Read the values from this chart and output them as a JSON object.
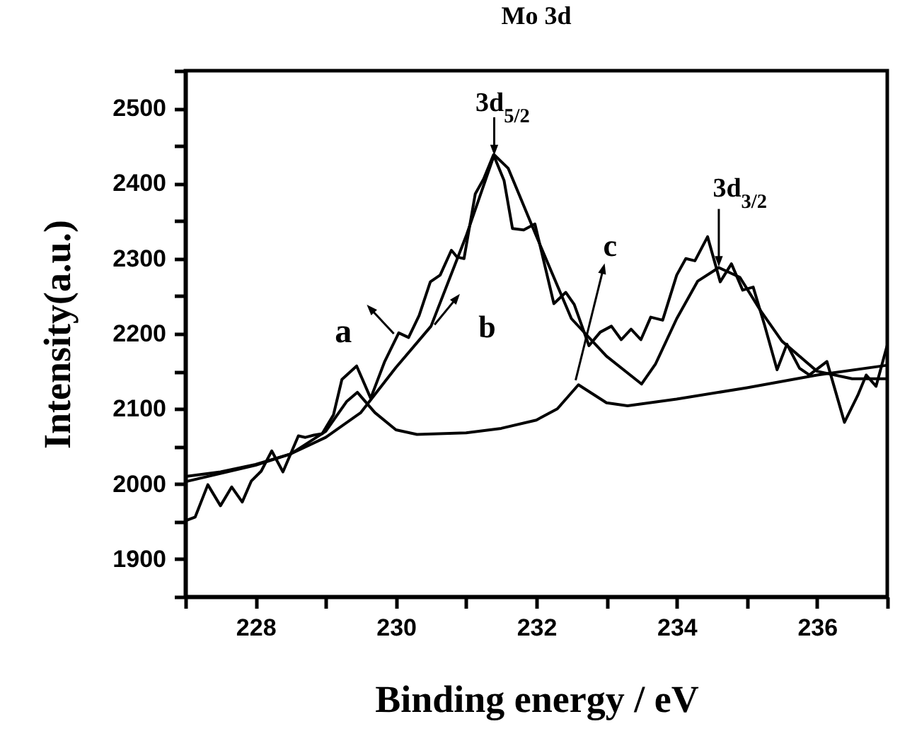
{
  "chart_data": {
    "type": "line",
    "title": "Mo 3d",
    "xlabel": "Binding energy / eV",
    "ylabel": "Intensity(a.u.)",
    "xlim": [
      227,
      237
    ],
    "ylim": [
      1850,
      2550
    ],
    "xticks": [
      {
        "value": 227,
        "label": null
      },
      228,
      {
        "value": 229,
        "label": null
      },
      230,
      {
        "value": 231,
        "label": null
      },
      232,
      {
        "value": 233,
        "label": null
      },
      234,
      {
        "value": 235,
        "label": null
      },
      236,
      {
        "value": 237,
        "label": null
      }
    ],
    "yticks": [
      {
        "value": 1850,
        "label": null
      },
      1900,
      {
        "value": 1950,
        "label": null
      },
      2000,
      {
        "value": 2050,
        "label": null
      },
      2100,
      {
        "value": 2150,
        "label": null
      },
      2200,
      {
        "value": 2250,
        "label": null
      },
      2300,
      {
        "value": 2350,
        "label": null
      },
      2400,
      {
        "value": 2450,
        "label": null
      },
      2500,
      {
        "value": 2550,
        "label": null
      }
    ],
    "grid": false,
    "marker": "none",
    "line_style": "solid",
    "series": [
      {
        "color": "#000000",
        "x": [
          227.0,
          227.14,
          227.32,
          227.5,
          227.66,
          227.81,
          227.94,
          228.08,
          228.23,
          228.39,
          228.61,
          228.71,
          228.83,
          228.95,
          229.11,
          229.23,
          229.44,
          229.64,
          229.84,
          230.04,
          230.18,
          230.33,
          230.49,
          230.63,
          230.79,
          230.87,
          230.97,
          231.13,
          231.25,
          231.39,
          231.54,
          231.66,
          231.82,
          231.98,
          232.1,
          232.25,
          232.42,
          232.54,
          232.75,
          232.91,
          233.07,
          233.21,
          233.35,
          233.49,
          233.63,
          233.8,
          234.0,
          234.13,
          234.26,
          234.44,
          234.62,
          234.78,
          234.94,
          235.09,
          235.25,
          235.43,
          235.57,
          235.75,
          235.89,
          236.14,
          236.39,
          236.58,
          236.7,
          236.84,
          237.0
        ],
        "values": [
          1951,
          1956,
          1999,
          1971,
          1996,
          1976,
          2004,
          2017,
          2044,
          2016,
          2064,
          2062,
          2065,
          2067,
          2092,
          2139,
          2157,
          2114,
          2163,
          2201,
          2195,
          2224,
          2269,
          2278,
          2311,
          2302,
          2300,
          2386,
          2406,
          2438,
          2404,
          2340,
          2338,
          2346,
          2299,
          2240,
          2255,
          2239,
          2184,
          2202,
          2210,
          2192,
          2206,
          2192,
          2222,
          2218,
          2278,
          2300,
          2297,
          2329,
          2269,
          2293,
          2258,
          2262,
          2212,
          2152,
          2186,
          2154,
          2145,
          2163,
          2082,
          2118,
          2145,
          2130,
          2185
        ]
      },
      {
        "color": "#000000",
        "x": [
          227.0,
          227.5,
          228.0,
          228.5,
          229.0,
          229.5,
          230.0,
          230.5,
          231.0,
          231.4,
          231.6,
          232.0,
          232.5,
          233.0,
          233.5,
          233.7,
          234.0,
          234.3,
          234.6,
          234.9,
          235.2,
          235.5,
          236.0,
          236.5,
          237.0
        ],
        "values": [
          2010,
          2016,
          2026,
          2040,
          2062,
          2095,
          2155,
          2210,
          2330,
          2438,
          2420,
          2330,
          2220,
          2170,
          2133,
          2160,
          2220,
          2270,
          2288,
          2275,
          2230,
          2190,
          2150,
          2140,
          2140
        ]
      },
      {
        "color": "#000000",
        "x": [
          227.0,
          228.0,
          228.5,
          229.0,
          229.3,
          229.45,
          229.7,
          230.0,
          230.3,
          231.0,
          231.5,
          232.0,
          232.3,
          232.6,
          232.8,
          233.0,
          233.3,
          234.0,
          235.0,
          236.0,
          237.0
        ],
        "values": [
          2003,
          2025,
          2040,
          2070,
          2110,
          2122,
          2095,
          2072,
          2066,
          2068,
          2074,
          2085,
          2100,
          2132,
          2120,
          2108,
          2104,
          2113,
          2128,
          2145,
          2158
        ]
      }
    ],
    "annotations": [
      {
        "text": "3d$_{5/2}$",
        "x": 231.4,
        "y": 2438
      },
      {
        "text": "3d$_{3/2}$",
        "x": 234.6,
        "y": 2290
      },
      {
        "text": "a",
        "x": 230.0,
        "y": 2198
      },
      {
        "text": "b",
        "x": 230.53,
        "y": 2210
      },
      {
        "text": "c",
        "x": 232.55,
        "y": 2135
      }
    ]
  }
}
